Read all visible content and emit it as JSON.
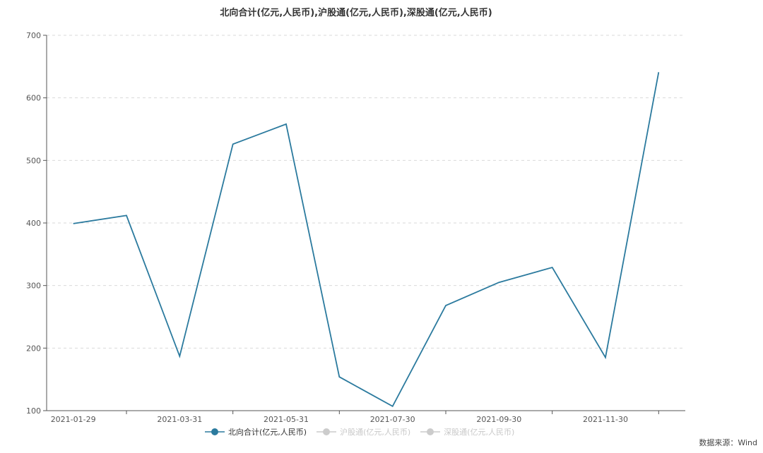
{
  "chart_data": {
    "type": "line",
    "title": "北向合计(亿元,人民币),沪股通(亿元,人民币),深股通(亿元,人民币)",
    "xlabel": "",
    "ylabel": "",
    "ylim": [
      100,
      700
    ],
    "yticks": [
      100,
      200,
      300,
      400,
      500,
      600,
      700
    ],
    "grid": true,
    "legend_position": "bottom",
    "x_tick_labels": [
      "2021-01-29",
      "2021-03-31",
      "2021-05-31",
      "2021-07-30",
      "2021-09-30",
      "2021-11-30"
    ],
    "x_tick_label_indices": [
      0,
      2,
      4,
      6,
      8,
      10
    ],
    "categories": [
      "2021-01-29",
      "2021-02",
      "2021-03-31",
      "2021-04",
      "2021-05-31",
      "2021-06",
      "2021-07-30",
      "2021-08",
      "2021-09-30",
      "2021-10",
      "2021-11-30",
      "2021-12"
    ],
    "series": [
      {
        "name": "北向合计(亿元,人民币)",
        "visible": true,
        "color": "#2b7a9e",
        "values": [
          399,
          412,
          187,
          526,
          558,
          154,
          107,
          268,
          305,
          329,
          185,
          641
        ]
      },
      {
        "name": "沪股通(亿元,人民币)",
        "visible": false,
        "color": "#cccccc",
        "values": []
      },
      {
        "name": "深股通(亿元,人民币)",
        "visible": false,
        "color": "#cccccc",
        "values": []
      }
    ]
  },
  "legend": {
    "items": [
      {
        "label": "北向合计(亿元,人民币)"
      },
      {
        "label": "沪股通(亿元,人民币)"
      },
      {
        "label": "深股通(亿元,人民币)"
      }
    ]
  },
  "source": "数据来源：Wind"
}
